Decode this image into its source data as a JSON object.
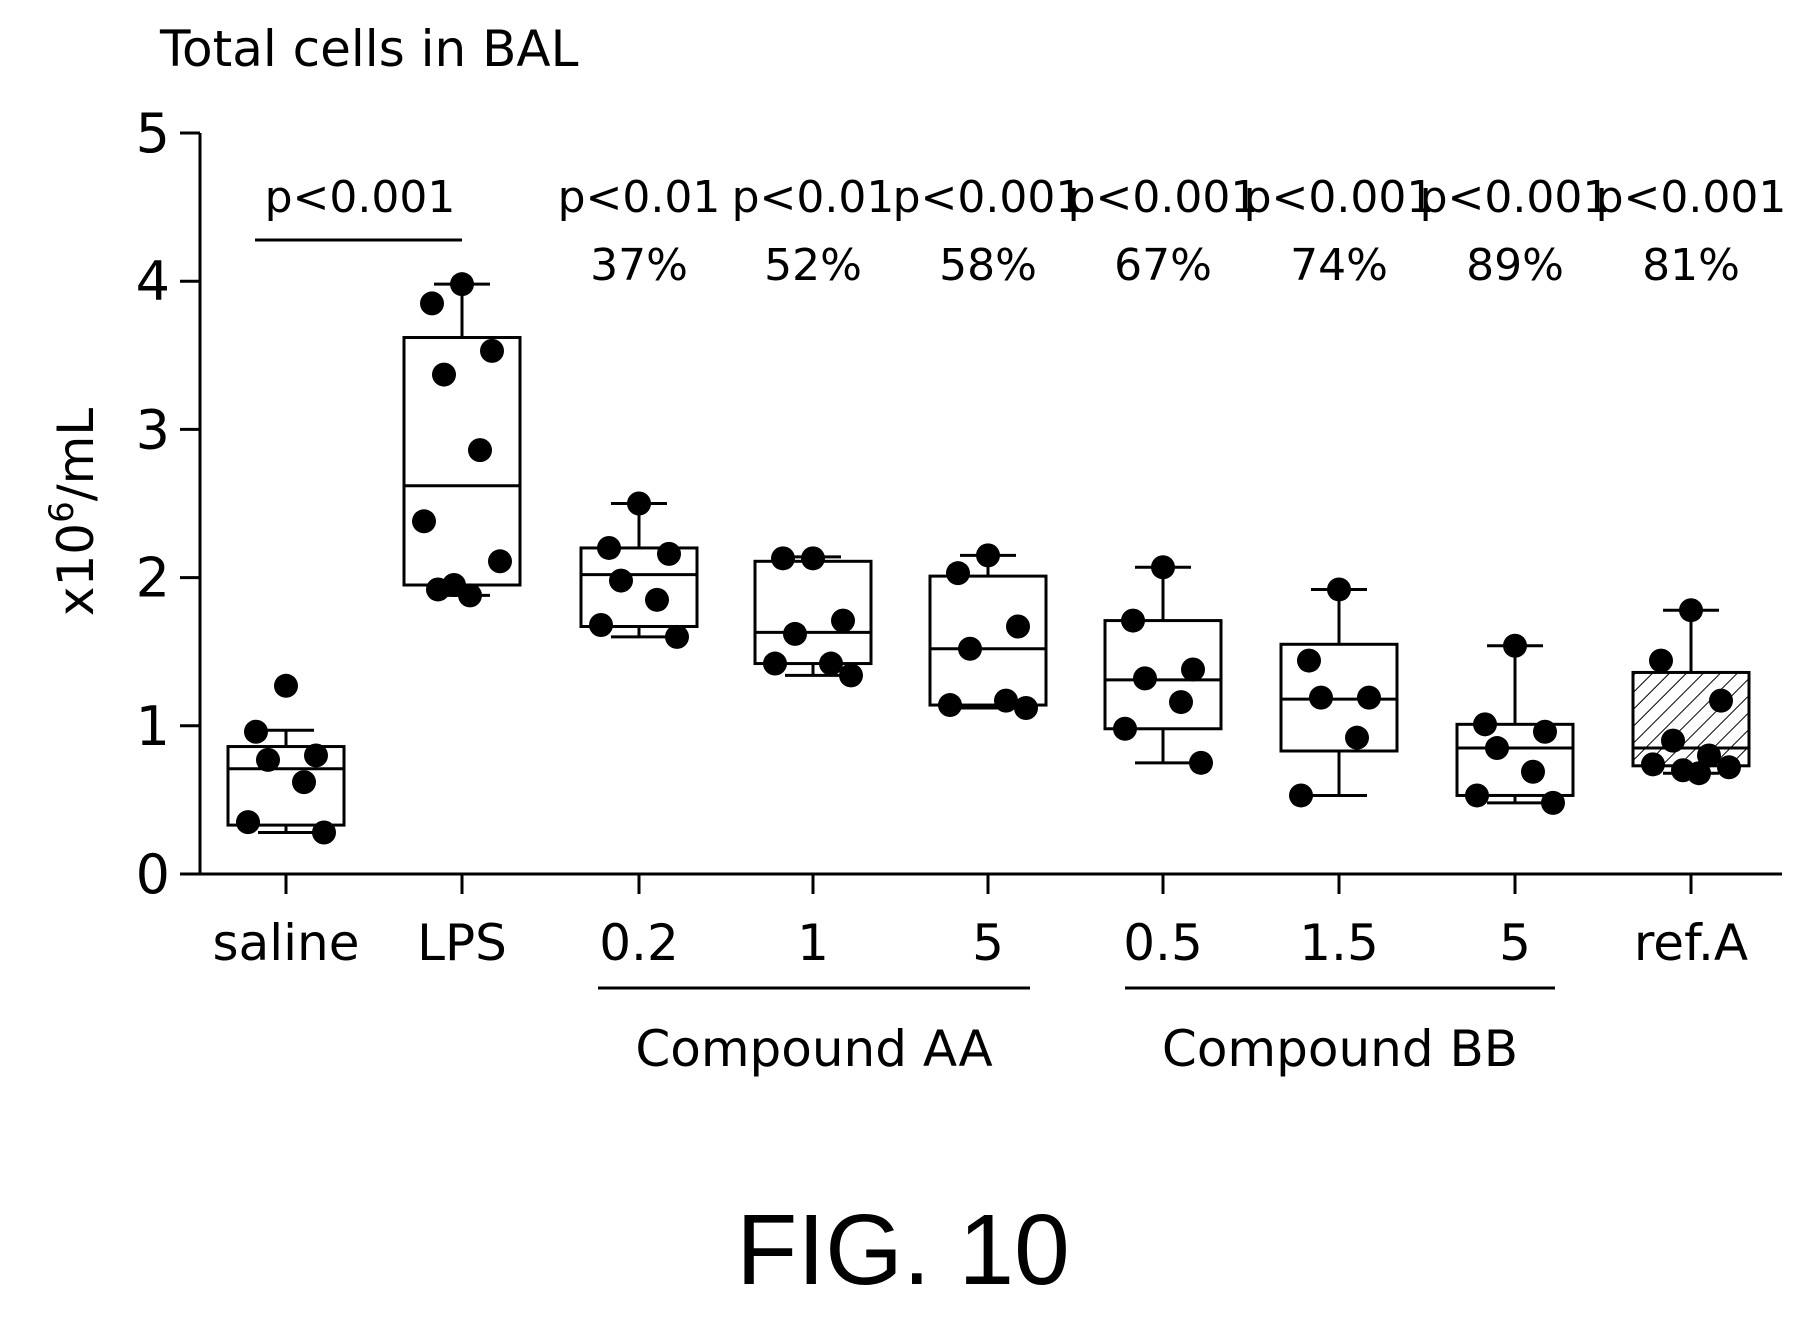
{
  "chart_data": {
    "type": "box",
    "title": "Total cells in BAL",
    "ylabel": "x10^6/mL",
    "ylabel_parts": {
      "prefix": "x10",
      "sup": "6",
      "suffix": "/mL"
    },
    "ylim": [
      0,
      5
    ],
    "yticks": [
      "0",
      "1",
      "2",
      "3",
      "4",
      "5"
    ],
    "xlabel": "",
    "categories": [
      "saline",
      "LPS",
      "0.2",
      "1",
      "5",
      "0.5",
      "1.5",
      "5",
      "ref.A"
    ],
    "groups": [
      {
        "label": "Compound AA",
        "categories": [
          "0.2",
          "1",
          "5"
        ]
      },
      {
        "label": "Compound BB",
        "categories": [
          "0.5",
          "1.5",
          "5"
        ]
      }
    ],
    "comparison": {
      "between": [
        "saline",
        "LPS"
      ],
      "label": "p<0.001"
    },
    "annotations": [
      {
        "category": "0.2",
        "p": "p<0.01",
        "inhibition": "37%"
      },
      {
        "category": "1",
        "p": "p<0.01",
        "inhibition": "52%"
      },
      {
        "category": "5 (Compound AA)",
        "p": "p<0.001",
        "inhibition": "58%"
      },
      {
        "category": "0.5",
        "p": "p<0.001",
        "inhibition": "67%"
      },
      {
        "category": "1.5",
        "p": "p<0.001",
        "inhibition": "74%"
      },
      {
        "category": "5 (Compound BB)",
        "p": "p<0.001",
        "inhibition": "89%"
      },
      {
        "category": "ref.A",
        "p": "p<0.001",
        "inhibition": "81%"
      }
    ],
    "boxes": [
      {
        "category": "saline",
        "min": 0.28,
        "q1": 0.33,
        "median": 0.71,
        "q3": 0.86,
        "max": 0.97,
        "hatched": false,
        "points": [
          1.27,
          0.96,
          0.8,
          0.77,
          0.62,
          0.35,
          0.28
        ]
      },
      {
        "category": "LPS",
        "min": 1.88,
        "q1": 1.95,
        "median": 2.62,
        "q3": 3.62,
        "max": 3.98,
        "hatched": false,
        "points": [
          3.98,
          3.85,
          3.53,
          3.37,
          2.86,
          2.38,
          2.11,
          1.95,
          1.88,
          1.92
        ]
      },
      {
        "category": "0.2",
        "min": 1.6,
        "q1": 1.67,
        "median": 2.02,
        "q3": 2.2,
        "max": 2.5,
        "hatched": false,
        "points": [
          2.5,
          2.2,
          2.16,
          1.98,
          1.85,
          1.68,
          1.6
        ]
      },
      {
        "category": "1",
        "min": 1.34,
        "q1": 1.42,
        "median": 1.63,
        "q3": 2.11,
        "max": 2.14,
        "hatched": false,
        "points": [
          2.13,
          2.13,
          1.71,
          1.62,
          1.42,
          1.42,
          1.34
        ]
      },
      {
        "category": "5",
        "min": 1.12,
        "q1": 1.14,
        "median": 1.52,
        "q3": 2.01,
        "max": 2.15,
        "hatched": false,
        "points": [
          2.15,
          2.03,
          1.67,
          1.52,
          1.17,
          1.14,
          1.12
        ]
      },
      {
        "category": "0.5",
        "min": 0.75,
        "q1": 0.98,
        "median": 1.31,
        "q3": 1.71,
        "max": 2.07,
        "hatched": false,
        "points": [
          2.07,
          1.71,
          1.38,
          1.32,
          1.16,
          0.98,
          0.75
        ]
      },
      {
        "category": "1.5",
        "min": 0.53,
        "q1": 0.83,
        "median": 1.18,
        "q3": 1.55,
        "max": 1.92,
        "hatched": false,
        "points": [
          1.92,
          1.44,
          1.19,
          1.19,
          0.92,
          0.53
        ]
      },
      {
        "category": "5",
        "min": 0.48,
        "q1": 0.53,
        "median": 0.85,
        "q3": 1.01,
        "max": 1.54,
        "hatched": false,
        "points": [
          1.54,
          1.01,
          0.96,
          0.85,
          0.69,
          0.53,
          0.48
        ]
      },
      {
        "category": "ref.A",
        "min": 0.68,
        "q1": 0.73,
        "median": 0.85,
        "q3": 1.36,
        "max": 1.78,
        "hatched": true,
        "points": [
          1.78,
          1.44,
          1.17,
          0.9,
          0.8,
          0.74,
          0.72,
          0.7,
          0.68
        ]
      }
    ]
  },
  "figure_label": "FIG. 10"
}
